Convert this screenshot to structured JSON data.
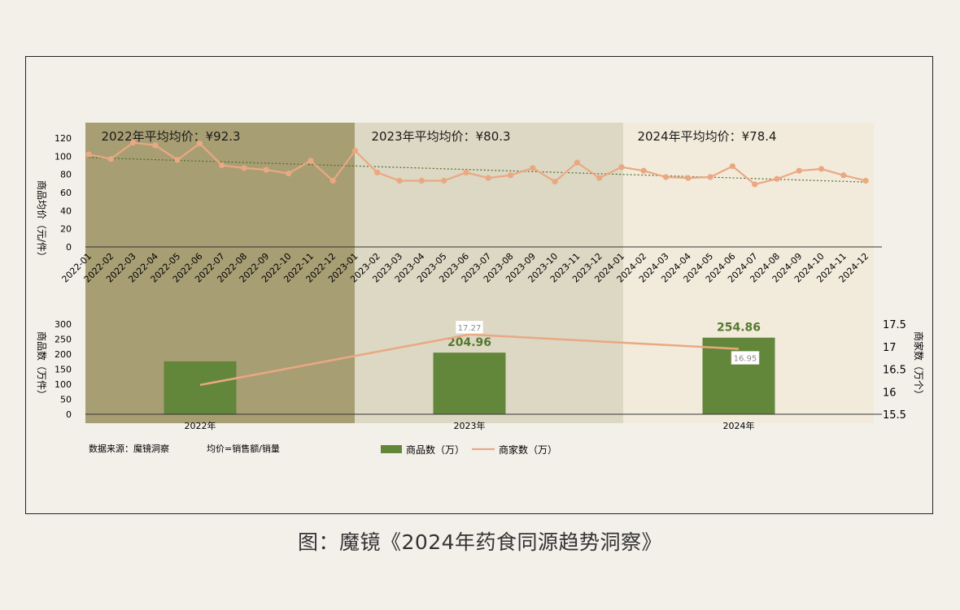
{
  "caption": "图：魔镜《2024年药食同源趋势洞察》",
  "colors": {
    "band_2022": "#a89e74",
    "band_2023": "#dcd8c3",
    "band_2024": "#f2ebdb",
    "line": "#eaa882",
    "trend": "#4f6b2e",
    "bar": "#62873a",
    "bar_label": "#55782f"
  },
  "chart_data": [
    {
      "type": "line",
      "ylabel": "商品均价（元/件）",
      "ylim": [
        0,
        120
      ],
      "yticks": [
        0,
        20,
        40,
        60,
        80,
        100,
        120
      ],
      "x": [
        "2022-01",
        "2022-02",
        "2022-03",
        "2022-04",
        "2022-05",
        "2022-06",
        "2022-07",
        "2022-08",
        "2022-09",
        "2022-10",
        "2022-11",
        "2022-12",
        "2023-01",
        "2023-02",
        "2023-03",
        "2023-04",
        "2023-05",
        "2023-06",
        "2023-07",
        "2023-08",
        "2023-09",
        "2023-10",
        "2023-11",
        "2023-12",
        "2024-01",
        "2024-02",
        "2024-03",
        "2024-04",
        "2024-05",
        "2024-06",
        "2024-07",
        "2024-08",
        "2024-09",
        "2024-10",
        "2024-11",
        "2024-12"
      ],
      "series": [
        {
          "values": [
            102,
            97,
            115,
            112,
            96,
            114,
            90,
            87,
            85,
            81,
            95,
            73,
            106,
            82,
            73,
            73,
            73,
            82,
            76,
            79,
            87,
            72,
            93,
            76,
            88,
            84,
            77,
            76,
            77,
            89,
            69,
            75,
            84,
            86,
            79,
            73
          ]
        }
      ],
      "trendline": {
        "start": 98.5,
        "end": 71.5
      },
      "annotations": [
        {
          "label": "2022年平均均价：¥92.3"
        },
        {
          "label": "2023年平均均价：¥80.3"
        },
        {
          "label": "2024年平均均价：¥78.4"
        }
      ]
    },
    {
      "type": "bar",
      "categories": [
        "2022年",
        "2023年",
        "2024年"
      ],
      "series": [
        {
          "name": "商品数（万）",
          "values": [
            176,
            204.96,
            254.86
          ],
          "data_labels": [
            "",
            "204.96",
            "254.86"
          ],
          "axis": "left"
        },
        {
          "name": "商家数（万）",
          "type": "line",
          "values": [
            16.15,
            17.27,
            16.95
          ],
          "data_labels": [
            "",
            "17.27",
            "16.95"
          ],
          "axis": "right"
        }
      ],
      "ylabel": "商品数（万件）",
      "ylim": [
        0,
        300
      ],
      "yticks": [
        0,
        50,
        100,
        150,
        200,
        250,
        300
      ],
      "y2label": "商家数（万个）",
      "y2lim": [
        15.5,
        17.5
      ],
      "y2ticks": [
        "15.5",
        "16",
        "16.5",
        "17",
        "17.5"
      ],
      "legend_position": "bottom-center"
    }
  ],
  "notes": {
    "source": "数据来源：魔镜洞察",
    "formula": "均价=销售额/销量"
  }
}
